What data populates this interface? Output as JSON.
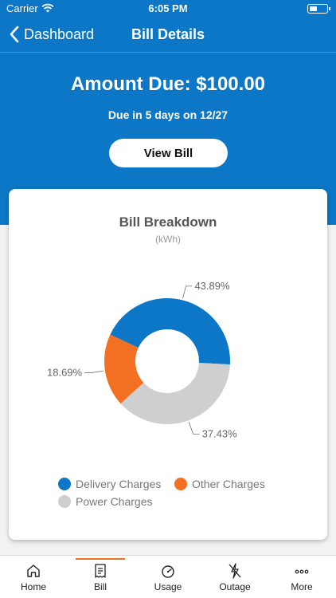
{
  "status_bar": {
    "carrier": "Carrier",
    "time": "6:05 PM"
  },
  "nav": {
    "back_label": "Dashboard",
    "title": "Bill Details"
  },
  "summary": {
    "amount_due": "Amount Due: $100.00",
    "due_text": "Due in 5 days on 12/27",
    "view_bill_label": "View Bill"
  },
  "breakdown": {
    "title": "Bill Breakdown",
    "unit": "(kWh)"
  },
  "chart_data": {
    "type": "pie",
    "title": "Bill Breakdown",
    "subtitle": "(kWh)",
    "donut": true,
    "categories": [
      "Delivery Charges",
      "Power Charges",
      "Other Charges"
    ],
    "values": [
      43.89,
      37.43,
      18.69
    ],
    "labels": [
      "43.89%",
      "37.43%",
      "18.69%"
    ],
    "colors": [
      "#0b77c6",
      "#cfcfcf",
      "#f36f21"
    ],
    "legend_placement": "bottom"
  },
  "legend": [
    {
      "label": "Delivery Charges",
      "color": "#0b77c6"
    },
    {
      "label": "Other Charges",
      "color": "#f36f21"
    },
    {
      "label": "Power Charges",
      "color": "#cfcfcf"
    }
  ],
  "tabs": [
    {
      "label": "Home",
      "icon": "home-icon"
    },
    {
      "label": "Bill",
      "icon": "bill-icon"
    },
    {
      "label": "Usage",
      "icon": "usage-icon"
    },
    {
      "label": "Outage",
      "icon": "outage-icon"
    },
    {
      "label": "More",
      "icon": "more-icon"
    }
  ],
  "active_tab": "Bill",
  "colors": {
    "brand": "#0b77c6",
    "accent": "#e87722"
  }
}
